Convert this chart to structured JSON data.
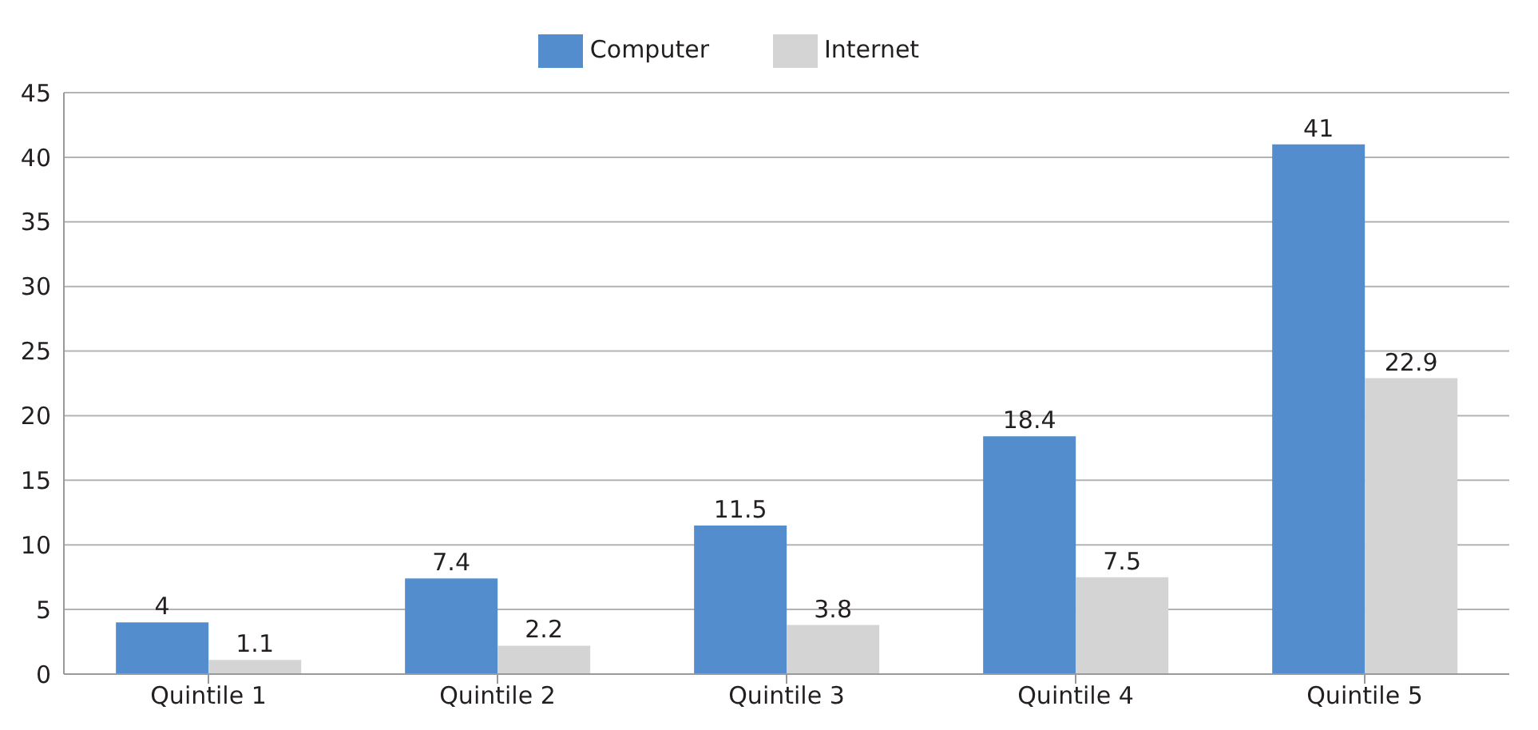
{
  "chart_data": {
    "type": "bar",
    "categories": [
      "Quintile 1",
      "Quintile 2",
      "Quintile 3",
      "Quintile 4",
      "Quintile 5"
    ],
    "series": [
      {
        "name": "Computer",
        "color": "#548dcd",
        "values": [
          4,
          7.4,
          11.5,
          18.4,
          41
        ]
      },
      {
        "name": "Internet",
        "color": "#d4d4d4",
        "values": [
          1.1,
          2.2,
          3.8,
          7.5,
          22.9
        ]
      }
    ],
    "ylim": [
      0,
      45
    ],
    "yticks": [
      0,
      5,
      10,
      15,
      20,
      25,
      30,
      35,
      40,
      45
    ],
    "grid": "y",
    "legend": "top",
    "data_labels": true
  }
}
